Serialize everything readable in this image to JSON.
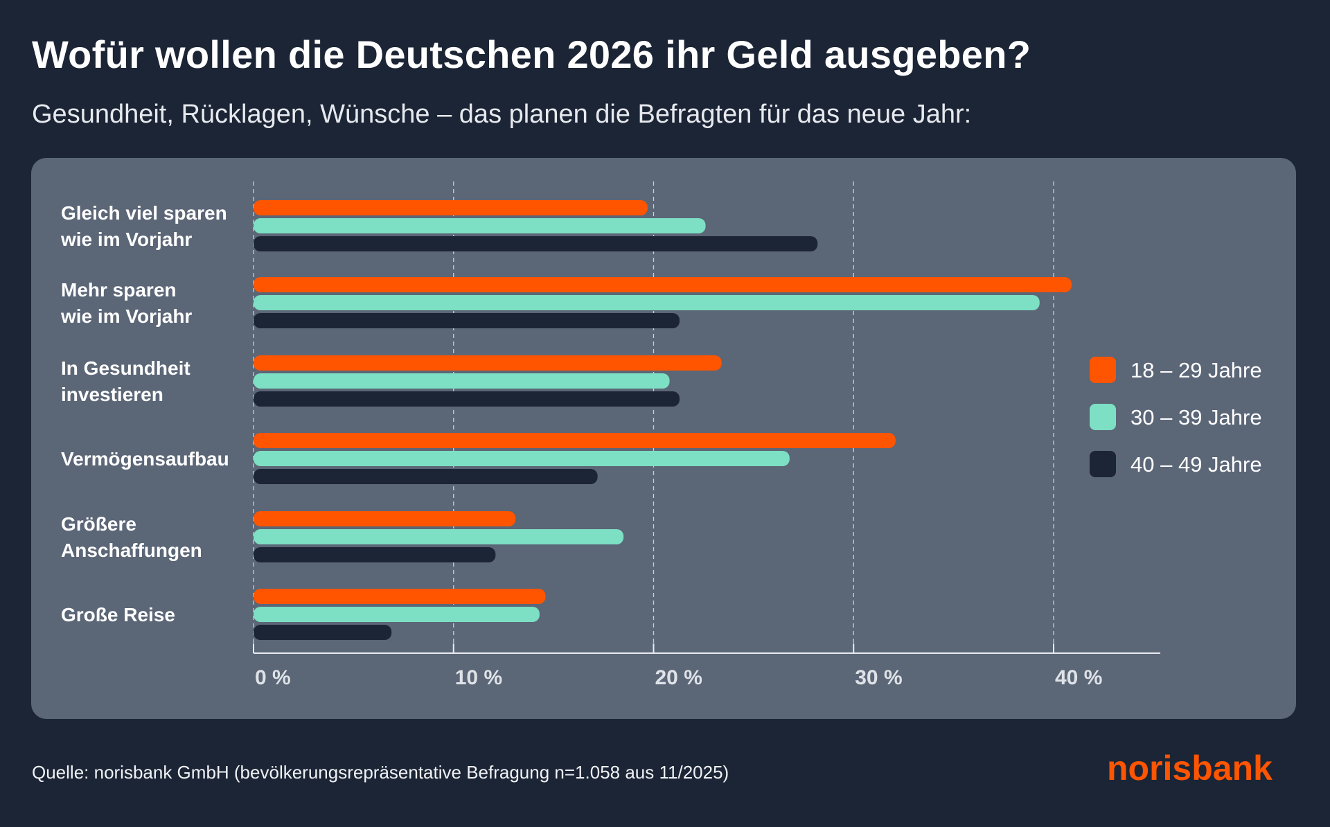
{
  "title": "Wofür wollen die Deutschen 2026 ihr Geld ausgeben?",
  "subtitle": "Gesundheit, Rücklagen, Wünsche – das planen die Befragten für das neue Jahr:",
  "footer": "Quelle: norisbank GmbH (bevölkerungsrepräsentative Befragung n=1.058 aus 11/2025)",
  "logo": "norisbank",
  "colors": {
    "orange": "#ff5500",
    "teal": "#7ddfc3",
    "dark": "#1c2535",
    "panel": "#5b6677",
    "logo": "#ff5500"
  },
  "chart_data": {
    "type": "bar",
    "orientation": "horizontal",
    "categories": [
      [
        "Gleich viel sparen",
        "wie im Vorjahr"
      ],
      [
        "Mehr sparen",
        "wie im Vorjahr"
      ],
      [
        "In Gesundheit",
        "investieren"
      ],
      [
        "Vermögensaufbau"
      ],
      [
        "Größere",
        "Anschaffungen"
      ],
      [
        "Große Reise"
      ]
    ],
    "series": [
      {
        "name": "18 – 29 Jahre",
        "color": "#ff5500",
        "values": [
          19.7,
          40.9,
          23.4,
          32.1,
          13.1,
          14.6
        ]
      },
      {
        "name": "30 – 39 Jahre",
        "color": "#7ddfc3",
        "values": [
          22.6,
          39.3,
          20.8,
          26.8,
          18.5,
          14.3
        ]
      },
      {
        "name": "40 – 49 Jahre",
        "color": "#1c2535",
        "values": [
          28.2,
          21.3,
          21.3,
          17.2,
          12.1,
          6.9
        ]
      }
    ],
    "xticks": [
      "0 %",
      "10 %",
      "20 %",
      "30 %",
      "40 %"
    ],
    "xtick_values": [
      0,
      10,
      20,
      30,
      40
    ],
    "xlim": [
      0,
      45
    ],
    "grid": "vertical dashed",
    "legend": "right",
    "unit": "%"
  }
}
